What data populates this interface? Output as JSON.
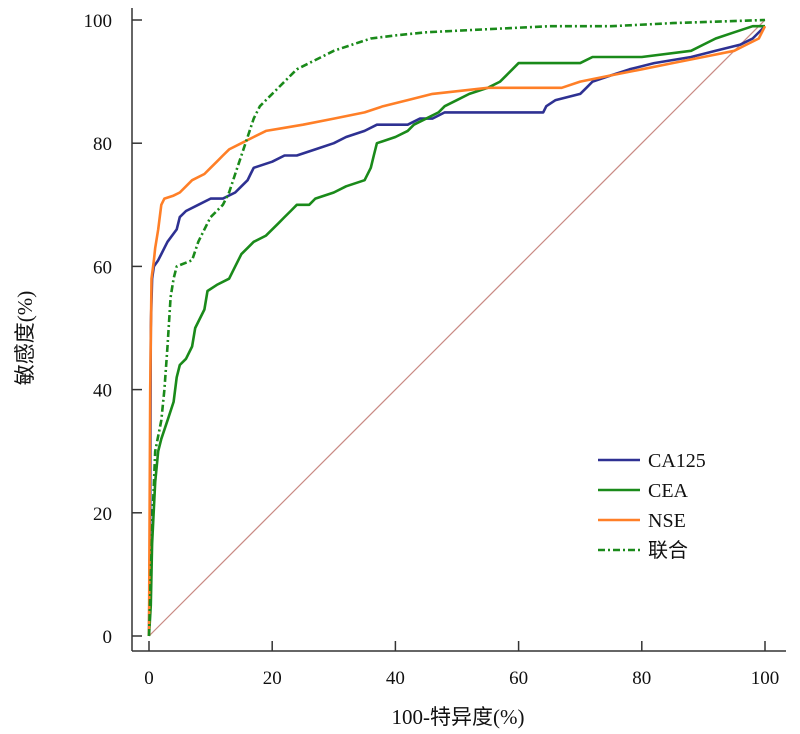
{
  "chart_data": {
    "type": "line",
    "title": "",
    "xlabel": "100-特异度(%)",
    "ylabel": "敏感度(%)",
    "xlim": [
      0,
      100
    ],
    "ylim": [
      0,
      100
    ],
    "x_ticks": [
      "0",
      "20",
      "40",
      "60",
      "80",
      "100"
    ],
    "y_ticks": [
      "0",
      "20",
      "40",
      "60",
      "80",
      "100"
    ],
    "grid": false,
    "legend_position": "lower-right",
    "series": [
      {
        "name": "CA125",
        "color": "#2e3192",
        "style": "solid",
        "points": [
          [
            0,
            0
          ],
          [
            0.2,
            20
          ],
          [
            0.3,
            50
          ],
          [
            0.5,
            58
          ],
          [
            0.8,
            60
          ],
          [
            1.5,
            61
          ],
          [
            2,
            62
          ],
          [
            2.5,
            63
          ],
          [
            3,
            64
          ],
          [
            4.5,
            66
          ],
          [
            5,
            68
          ],
          [
            6,
            69
          ],
          [
            8,
            70
          ],
          [
            10,
            71
          ],
          [
            12,
            71
          ],
          [
            14,
            72
          ],
          [
            15,
            73
          ],
          [
            16,
            74
          ],
          [
            16.5,
            75
          ],
          [
            17,
            76
          ],
          [
            20,
            77
          ],
          [
            22,
            78
          ],
          [
            24,
            78
          ],
          [
            27,
            79
          ],
          [
            30,
            80
          ],
          [
            32,
            81
          ],
          [
            35,
            82
          ],
          [
            37,
            83
          ],
          [
            42,
            83
          ],
          [
            44,
            84
          ],
          [
            46,
            84
          ],
          [
            48,
            85
          ],
          [
            64,
            85
          ],
          [
            64.5,
            86
          ],
          [
            66,
            87
          ],
          [
            70,
            88
          ],
          [
            71,
            89
          ],
          [
            72,
            90
          ],
          [
            75,
            91
          ],
          [
            78,
            92
          ],
          [
            82,
            93
          ],
          [
            88,
            94
          ],
          [
            92,
            95
          ],
          [
            96,
            96
          ],
          [
            98,
            97
          ],
          [
            100,
            99
          ]
        ]
      },
      {
        "name": "CEA",
        "color": "#1a8a1a",
        "style": "solid",
        "points": [
          [
            0,
            0
          ],
          [
            0.3,
            5
          ],
          [
            0.5,
            15
          ],
          [
            1,
            25
          ],
          [
            1.5,
            30
          ],
          [
            2,
            32
          ],
          [
            3,
            35
          ],
          [
            4,
            38
          ],
          [
            4.5,
            42
          ],
          [
            5,
            44
          ],
          [
            6,
            45
          ],
          [
            7,
            47
          ],
          [
            7.5,
            50
          ],
          [
            9,
            53
          ],
          [
            9.5,
            56
          ],
          [
            11,
            57
          ],
          [
            13,
            58
          ],
          [
            14,
            60
          ],
          [
            15,
            62
          ],
          [
            16,
            63
          ],
          [
            17,
            64
          ],
          [
            19,
            65
          ],
          [
            20,
            66
          ],
          [
            21,
            67
          ],
          [
            22,
            68
          ],
          [
            23,
            69
          ],
          [
            24,
            70
          ],
          [
            26,
            70
          ],
          [
            27,
            71
          ],
          [
            30,
            72
          ],
          [
            32,
            73
          ],
          [
            35,
            74
          ],
          [
            36,
            76
          ],
          [
            36.5,
            78
          ],
          [
            37,
            80
          ],
          [
            40,
            81
          ],
          [
            42,
            82
          ],
          [
            43,
            83
          ],
          [
            45,
            84
          ],
          [
            47,
            85
          ],
          [
            48,
            86
          ],
          [
            50,
            87
          ],
          [
            52,
            88
          ],
          [
            55,
            89
          ],
          [
            57,
            90
          ],
          [
            58,
            91
          ],
          [
            59,
            92
          ],
          [
            60,
            93
          ],
          [
            70,
            93
          ],
          [
            72,
            94
          ],
          [
            80,
            94
          ],
          [
            88,
            95
          ],
          [
            90,
            96
          ],
          [
            92,
            97
          ],
          [
            95,
            98
          ],
          [
            98,
            99
          ],
          [
            100,
            99
          ]
        ]
      },
      {
        "name": "NSE",
        "color": "#ff7f27",
        "style": "solid",
        "points": [
          [
            0,
            0
          ],
          [
            0.2,
            40
          ],
          [
            0.4,
            58
          ],
          [
            0.8,
            61
          ],
          [
            1,
            63
          ],
          [
            1.5,
            66
          ],
          [
            2,
            70
          ],
          [
            2.5,
            71
          ],
          [
            4,
            71.5
          ],
          [
            5,
            72
          ],
          [
            6,
            73
          ],
          [
            7,
            74
          ],
          [
            9,
            75
          ],
          [
            10,
            76
          ],
          [
            11,
            77
          ],
          [
            12,
            78
          ],
          [
            13,
            79
          ],
          [
            15,
            80
          ],
          [
            17,
            81
          ],
          [
            19,
            82
          ],
          [
            22,
            82.5
          ],
          [
            25,
            83
          ],
          [
            30,
            84
          ],
          [
            35,
            85
          ],
          [
            38,
            86
          ],
          [
            42,
            87
          ],
          [
            46,
            88
          ],
          [
            55,
            89
          ],
          [
            67,
            89
          ],
          [
            70,
            90
          ],
          [
            75,
            91
          ],
          [
            80,
            92
          ],
          [
            85,
            93
          ],
          [
            90,
            94
          ],
          [
            95,
            95
          ],
          [
            97,
            96
          ],
          [
            99,
            97
          ],
          [
            100,
            99
          ]
        ]
      },
      {
        "name": "联合",
        "color": "#1a8a1a",
        "style": "dashdot",
        "points": [
          [
            0,
            0
          ],
          [
            0.3,
            10
          ],
          [
            0.6,
            20
          ],
          [
            1,
            30
          ],
          [
            2,
            35
          ],
          [
            2.5,
            40
          ],
          [
            3,
            47
          ],
          [
            3.5,
            55
          ],
          [
            4,
            58
          ],
          [
            4.5,
            60
          ],
          [
            7,
            61
          ],
          [
            8,
            64
          ],
          [
            9,
            66
          ],
          [
            10,
            68
          ],
          [
            11,
            69
          ],
          [
            12,
            70
          ],
          [
            13,
            72
          ],
          [
            14,
            75
          ],
          [
            15,
            78
          ],
          [
            16,
            81
          ],
          [
            17,
            84
          ],
          [
            18,
            86
          ],
          [
            20,
            88
          ],
          [
            22,
            90
          ],
          [
            24,
            92
          ],
          [
            26,
            93
          ],
          [
            28,
            94
          ],
          [
            30,
            95
          ],
          [
            33,
            96
          ],
          [
            36,
            97
          ],
          [
            40,
            97.5
          ],
          [
            45,
            98
          ],
          [
            55,
            98.5
          ],
          [
            65,
            99
          ],
          [
            75,
            99
          ],
          [
            85,
            99.5
          ],
          [
            100,
            100
          ]
        ]
      },
      {
        "name": "",
        "color": "#c98a84",
        "style": "solid",
        "points": [
          [
            0,
            0
          ],
          [
            100,
            100
          ]
        ]
      }
    ]
  },
  "legend": [
    {
      "name": "CA125",
      "color": "#2e3192",
      "style": "solid"
    },
    {
      "name": "CEA",
      "color": "#1a8a1a",
      "style": "solid"
    },
    {
      "name": "NSE",
      "color": "#ff7f27",
      "style": "solid"
    },
    {
      "name": "联合",
      "color": "#1a8a1a",
      "style": "dashdot"
    }
  ]
}
